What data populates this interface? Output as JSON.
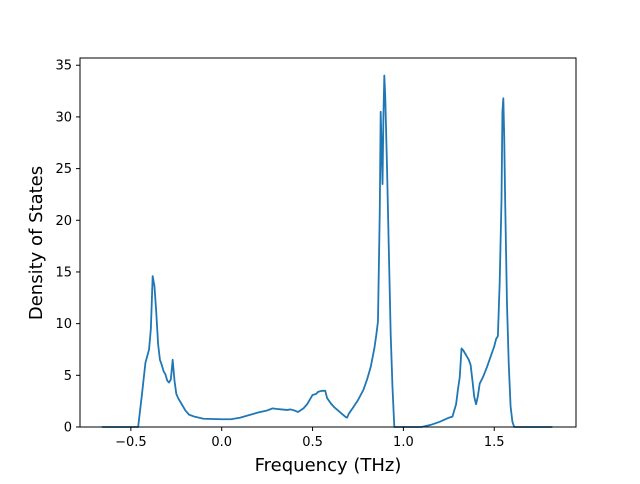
{
  "colors": {
    "line": "#1f77b4",
    "axis": "#000000",
    "background": "#ffffff"
  },
  "chart_data": {
    "type": "line",
    "title": "",
    "xlabel": "Frequency (THz)",
    "ylabel": "Density of States",
    "xlim": [
      -0.78,
      1.95
    ],
    "ylim": [
      0,
      35.7
    ],
    "x_ticks": [
      -0.5,
      0.0,
      0.5,
      1.0,
      1.5
    ],
    "x_tick_labels": [
      "−0.5",
      "0.0",
      "0.5",
      "1.0",
      "1.5"
    ],
    "y_ticks": [
      0,
      5,
      10,
      15,
      20,
      25,
      30,
      35
    ],
    "y_tick_labels": [
      "0",
      "5",
      "10",
      "15",
      "20",
      "25",
      "30",
      "35"
    ],
    "grid": false,
    "series": [
      {
        "x": [
          -0.66,
          -0.46,
          -0.44,
          -0.42,
          -0.4,
          -0.39,
          -0.38,
          -0.37,
          -0.36,
          -0.35,
          -0.34,
          -0.33,
          -0.32,
          -0.31,
          -0.3,
          -0.29,
          -0.28,
          -0.27,
          -0.26,
          -0.25,
          -0.24,
          -0.22,
          -0.2,
          -0.18,
          -0.15,
          -0.1,
          0.0,
          0.05,
          0.1,
          0.15,
          0.2,
          0.25,
          0.28,
          0.3,
          0.33,
          0.36,
          0.38,
          0.4,
          0.42,
          0.45,
          0.47,
          0.49,
          0.5,
          0.52,
          0.53,
          0.55,
          0.57,
          0.58,
          0.6,
          0.62,
          0.64,
          0.66,
          0.68,
          0.69,
          0.7,
          0.72,
          0.75,
          0.78,
          0.8,
          0.82,
          0.84,
          0.85,
          0.86,
          0.87,
          0.875,
          0.88,
          0.885,
          0.89,
          0.895,
          0.9,
          0.905,
          0.91,
          0.92,
          0.93,
          0.94,
          0.95,
          0.96,
          0.97,
          0.98,
          1.1,
          1.15,
          1.2,
          1.25,
          1.27,
          1.29,
          1.3,
          1.31,
          1.32,
          1.33,
          1.34,
          1.35,
          1.36,
          1.37,
          1.38,
          1.39,
          1.4,
          1.41,
          1.42,
          1.44,
          1.46,
          1.48,
          1.5,
          1.51,
          1.52,
          1.53,
          1.54,
          1.545,
          1.55,
          1.555,
          1.56,
          1.57,
          1.58,
          1.59,
          1.6,
          1.61,
          1.62,
          1.82
        ],
        "y": [
          0,
          0,
          3.0,
          6.2,
          7.5,
          9.5,
          14.6,
          13.6,
          11.0,
          8.0,
          6.5,
          6.0,
          5.4,
          5.1,
          4.5,
          4.3,
          4.6,
          6.5,
          4.5,
          3.2,
          2.8,
          2.2,
          1.6,
          1.2,
          1.0,
          0.8,
          0.75,
          0.75,
          0.9,
          1.15,
          1.4,
          1.6,
          1.8,
          1.75,
          1.7,
          1.65,
          1.7,
          1.6,
          1.45,
          1.8,
          2.2,
          2.8,
          3.1,
          3.2,
          3.4,
          3.5,
          3.5,
          2.8,
          2.3,
          1.9,
          1.6,
          1.3,
          1.0,
          0.9,
          1.3,
          1.8,
          2.6,
          3.6,
          4.6,
          5.8,
          7.6,
          8.8,
          10.2,
          21.0,
          30.5,
          27.0,
          23.5,
          30.0,
          34.0,
          32.0,
          28.5,
          25.0,
          17.0,
          9.0,
          3.8,
          0,
          0,
          0,
          0,
          0,
          0.2,
          0.5,
          0.9,
          1.0,
          2.2,
          3.6,
          4.8,
          7.6,
          7.4,
          7.1,
          6.8,
          6.5,
          6.0,
          4.5,
          2.9,
          2.2,
          3.0,
          4.2,
          4.9,
          5.8,
          6.8,
          7.8,
          8.5,
          8.8,
          14.0,
          22.0,
          30.5,
          31.8,
          28.0,
          22.0,
          12.0,
          6.0,
          2.0,
          0.5,
          0,
          0,
          0
        ]
      }
    ]
  }
}
